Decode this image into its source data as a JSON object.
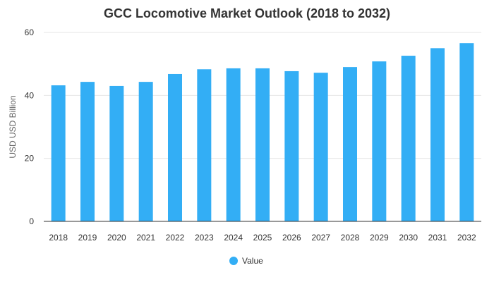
{
  "chart_data": {
    "type": "bar",
    "title": "GCC Locomotive Market Outlook (2018 to 2032)",
    "xlabel": "",
    "ylabel": "USD USD Billion",
    "categories": [
      "2018",
      "2019",
      "2020",
      "2021",
      "2022",
      "2023",
      "2024",
      "2025",
      "2026",
      "2027",
      "2028",
      "2029",
      "2030",
      "2031",
      "2032"
    ],
    "series": [
      {
        "name": "Value",
        "values": [
          43.2,
          44.3,
          43.0,
          44.3,
          46.8,
          48.3,
          48.6,
          48.6,
          47.7,
          47.2,
          49.0,
          50.8,
          52.6,
          55.0,
          56.6
        ]
      }
    ],
    "ylim": [
      0,
      60
    ],
    "yticks": [
      0,
      20,
      40,
      60
    ],
    "grid": true,
    "legend": "bottom-center",
    "colors": {
      "bar": "#33aef5",
      "grid": "#e6e6e6",
      "axis": "#333333"
    }
  }
}
